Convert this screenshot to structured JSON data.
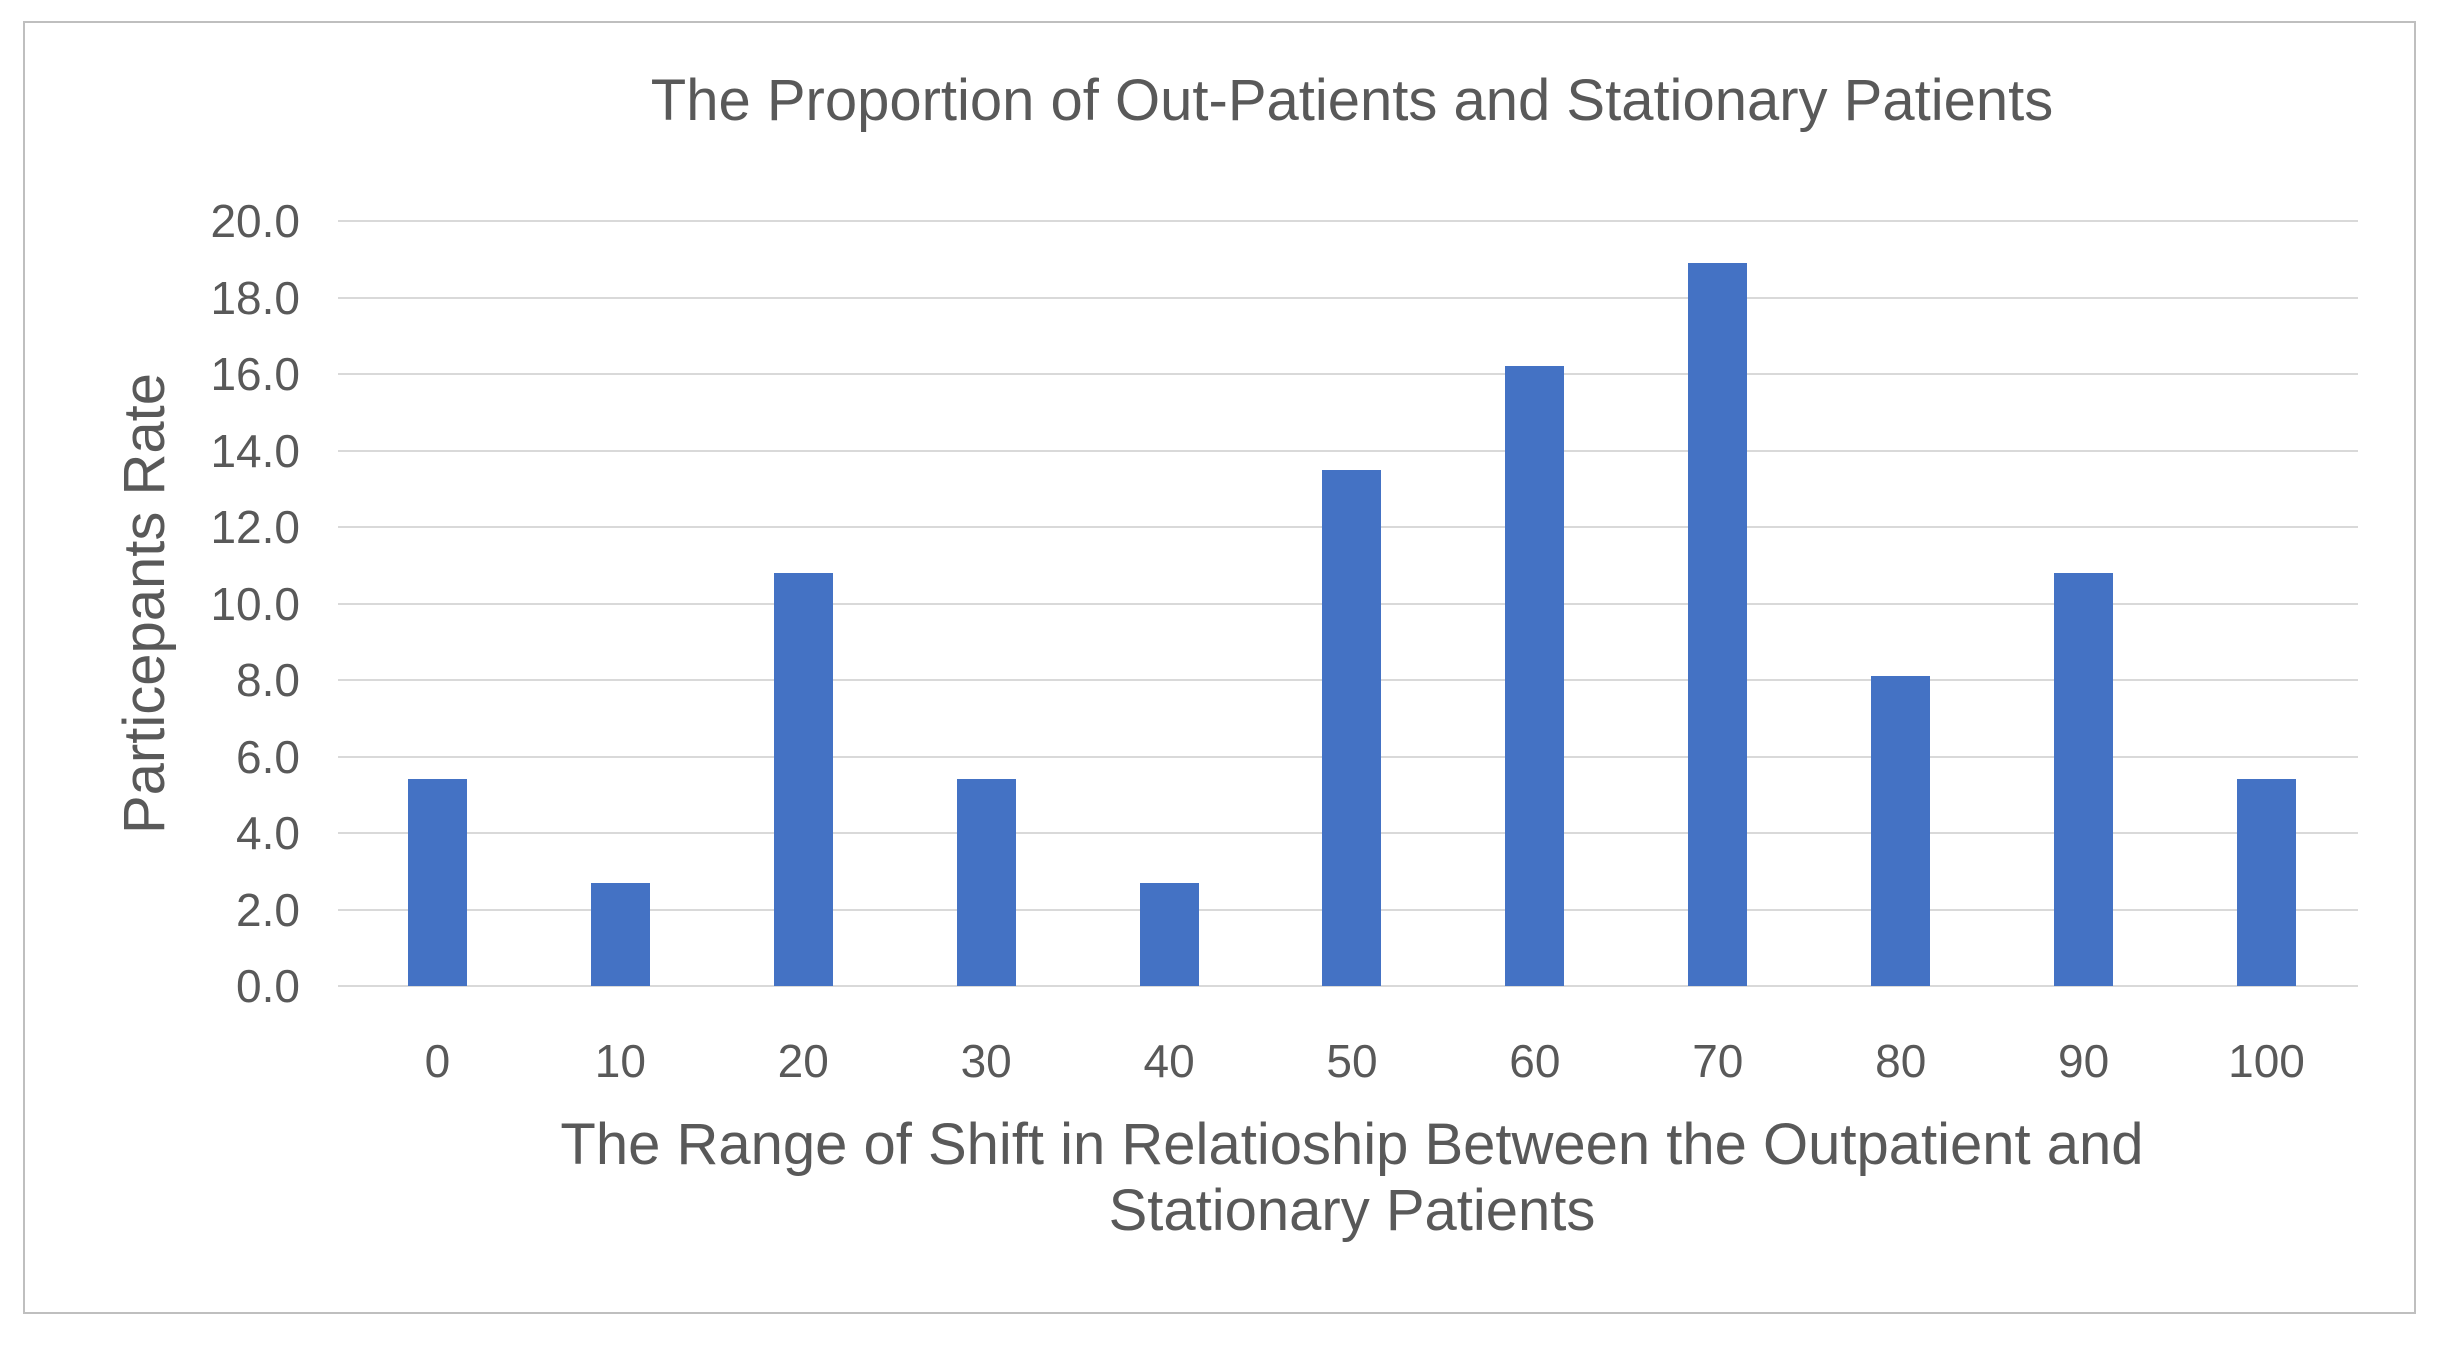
{
  "chart": {
    "title": "The Proportion of Out-Patients and Stationary Patients",
    "y_axis": {
      "title": "Particepants Rate",
      "tick_labels": [
        "0.0",
        "2.0",
        "4.0",
        "6.0",
        "8.0",
        "10.0",
        "12.0",
        "14.0",
        "16.0",
        "18.0",
        "20.0"
      ]
    },
    "x_axis": {
      "title_line1": "The Range of Shift in Relatioship Between the Outpatient and",
      "title_line2": "Stationary Patients",
      "tick_labels": [
        "0",
        "10",
        "20",
        "30",
        "40",
        "50",
        "60",
        "70",
        "80",
        "90",
        "100"
      ]
    }
  },
  "chart_data": {
    "type": "bar",
    "title": "The Proportion of Out-Patients and Stationary Patients",
    "categories": [
      "0",
      "10",
      "20",
      "30",
      "40",
      "50",
      "60",
      "70",
      "80",
      "90",
      "100"
    ],
    "values": [
      5.4,
      2.7,
      10.8,
      5.4,
      2.7,
      13.5,
      16.2,
      18.9,
      8.1,
      10.8,
      5.4
    ],
    "xlabel": "The Range of Shift in Relatioship Between the Outpatient and Stationary Patients",
    "ylabel": "Particepants Rate",
    "ylim": [
      0,
      20
    ],
    "ytick_step": 2,
    "grid": true,
    "legend_position": "none",
    "bar_color": "#4472C4",
    "gridline_color": "#D9D9D9",
    "text_color": "#595959",
    "frame_border_color": "#BFBFBF"
  }
}
